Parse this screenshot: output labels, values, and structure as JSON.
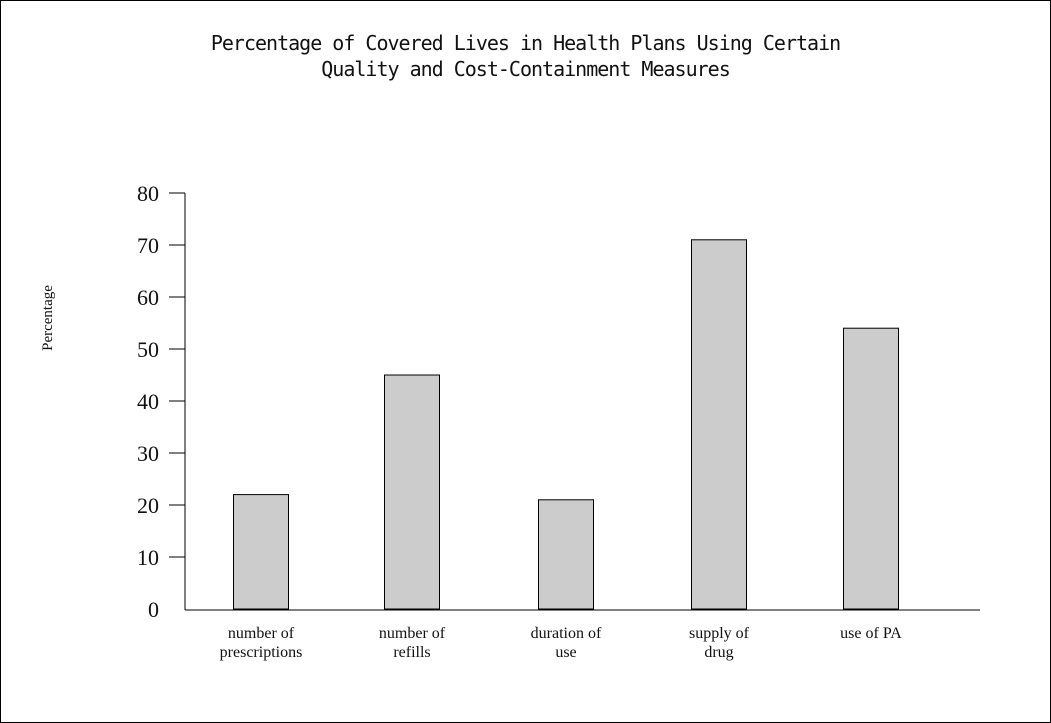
{
  "chart_data": {
    "type": "bar",
    "title_lines": [
      "Percentage of Covered Lives in Health Plans Using Certain",
      "Quality and Cost-Containment Measures"
    ],
    "ylabel": "Percentage",
    "xlabel": "",
    "categories": [
      [
        "number of",
        "prescriptions"
      ],
      [
        "number of",
        "refills"
      ],
      [
        "duration of",
        "use"
      ],
      [
        "supply of",
        "drug"
      ],
      [
        "use of PA"
      ]
    ],
    "values": [
      22,
      45,
      21,
      71,
      54
    ],
    "ylim": [
      0,
      80
    ],
    "yticks": [
      0,
      10,
      20,
      30,
      40,
      50,
      60,
      70,
      80
    ],
    "grid": false,
    "legend": "none",
    "bar_color": "#cccccc",
    "bar_edge_color": "#000000"
  }
}
